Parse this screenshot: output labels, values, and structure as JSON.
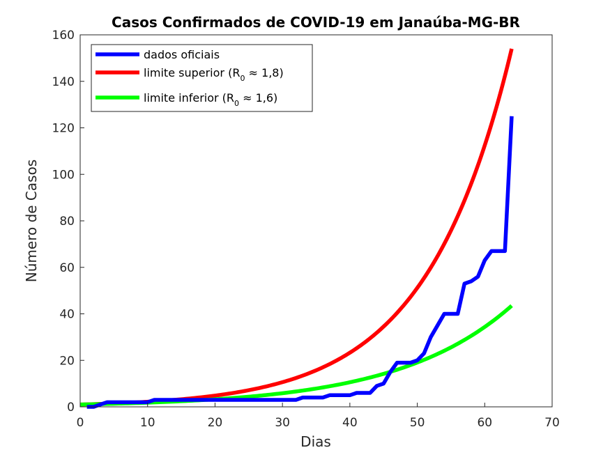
{
  "chart_data": {
    "type": "line",
    "title": "Casos Confirmados de COVID-19 em Janaúba-MG-BR",
    "xlabel": "Dias",
    "ylabel": "Número de Casos",
    "xlim": [
      0,
      70
    ],
    "ylim": [
      0,
      160
    ],
    "xticks": [
      0,
      10,
      20,
      30,
      40,
      50,
      60,
      70
    ],
    "yticks": [
      0,
      20,
      40,
      60,
      80,
      100,
      120,
      140,
      160
    ],
    "grid": false,
    "legend_position": "top-left",
    "series": [
      {
        "name": "dados oficiais",
        "color": "#0000ff",
        "x": [
          1,
          2,
          3,
          4,
          5,
          6,
          7,
          8,
          9,
          10,
          11,
          12,
          13,
          14,
          15,
          16,
          17,
          18,
          19,
          20,
          21,
          22,
          23,
          24,
          25,
          26,
          27,
          28,
          29,
          30,
          31,
          32,
          33,
          34,
          35,
          36,
          37,
          38,
          39,
          40,
          41,
          42,
          43,
          44,
          45,
          46,
          47,
          48,
          49,
          50,
          51,
          52,
          53,
          54,
          55,
          56,
          57,
          58,
          59,
          60,
          61,
          62,
          63,
          64
        ],
        "y": [
          0,
          0,
          1,
          2,
          2,
          2,
          2,
          2,
          2,
          2,
          3,
          3,
          3,
          3,
          3,
          3,
          3,
          3,
          3,
          3,
          3,
          3,
          3,
          3,
          3,
          3,
          3,
          3,
          3,
          3,
          3,
          3,
          4,
          4,
          4,
          4,
          5,
          5,
          5,
          5,
          6,
          6,
          6,
          9,
          10,
          15,
          19,
          19,
          19,
          20,
          23,
          30,
          35,
          40,
          40,
          40,
          53,
          54,
          56,
          63,
          67,
          67,
          67,
          125
        ]
      },
      {
        "name": "limite superior",
        "name_sub": "0",
        "name_prefix": "(R",
        "name_suffix": " ≈ 1,8)",
        "color": "#ff0000",
        "model": "exponential",
        "x_start": 0,
        "x_end": 64,
        "y_start": 1,
        "y_end": 154
      },
      {
        "name": "limite inferior",
        "name_sub": "0",
        "name_prefix": "(R",
        "name_suffix": " ≈ 1,6)",
        "color": "#00ff00",
        "model": "exponential",
        "x_start": 0,
        "x_end": 64,
        "y_start": 1,
        "y_end": 43.5
      }
    ]
  }
}
